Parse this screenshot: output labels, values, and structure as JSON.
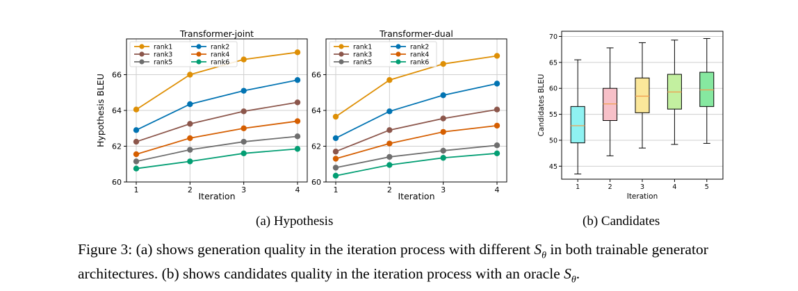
{
  "chart_data": [
    {
      "type": "line",
      "title": "Transformer-joint",
      "xlabel": "Iteration",
      "ylabel": "Hypothesis BLEU",
      "x": [
        1,
        2,
        3,
        4
      ],
      "ylim": [
        60,
        68
      ],
      "yticks": [
        60,
        62,
        64,
        66
      ],
      "grid": true,
      "legend_position": "top-left",
      "series": [
        {
          "name": "rank1",
          "color": "#de8f05",
          "values": [
            64.05,
            66.0,
            66.85,
            67.25
          ]
        },
        {
          "name": "rank2",
          "color": "#0173b2",
          "values": [
            62.9,
            64.35,
            65.1,
            65.7
          ]
        },
        {
          "name": "rank3",
          "color": "#8c564b",
          "values": [
            62.25,
            63.25,
            63.95,
            64.45
          ]
        },
        {
          "name": "rank4",
          "color": "#d55e00",
          "values": [
            61.55,
            62.45,
            63.0,
            63.4
          ]
        },
        {
          "name": "rank5",
          "color": "#6e6e6e",
          "values": [
            61.15,
            61.8,
            62.25,
            62.55
          ]
        },
        {
          "name": "rank6",
          "color": "#029e73",
          "values": [
            60.75,
            61.15,
            61.6,
            61.85
          ]
        }
      ]
    },
    {
      "type": "line",
      "title": "Transformer-dual",
      "xlabel": "Iteration",
      "ylabel": "",
      "x": [
        1,
        2,
        3,
        4
      ],
      "ylim": [
        60,
        68
      ],
      "yticks": [
        60,
        62,
        64,
        66
      ],
      "grid": true,
      "legend_position": "top-left",
      "series": [
        {
          "name": "rank1",
          "color": "#de8f05",
          "values": [
            63.65,
            65.7,
            66.6,
            67.05
          ]
        },
        {
          "name": "rank2",
          "color": "#0173b2",
          "values": [
            62.45,
            63.95,
            64.85,
            65.5
          ]
        },
        {
          "name": "rank3",
          "color": "#8c564b",
          "values": [
            61.7,
            62.9,
            63.55,
            64.05
          ]
        },
        {
          "name": "rank4",
          "color": "#d55e00",
          "values": [
            61.3,
            62.15,
            62.8,
            63.15
          ]
        },
        {
          "name": "rank5",
          "color": "#6e6e6e",
          "values": [
            60.8,
            61.4,
            61.75,
            62.05
          ]
        },
        {
          "name": "rank6",
          "color": "#029e73",
          "values": [
            60.35,
            60.95,
            61.35,
            61.6
          ]
        }
      ]
    },
    {
      "type": "box",
      "title": "",
      "xlabel": "Iteration",
      "ylabel": "Candidates BLEU",
      "categories": [
        "1",
        "2",
        "3",
        "4",
        "5"
      ],
      "ylim": [
        42.5,
        71
      ],
      "yticks": [
        45,
        50,
        55,
        60,
        65,
        70
      ],
      "grid": true,
      "median_color": "#f0a050",
      "boxes": [
        {
          "whisker_low": 43.5,
          "q1": 49.5,
          "median": 52.8,
          "q3": 56.5,
          "whisker_high": 65.5,
          "color": "#8ff2f2"
        },
        {
          "whisker_low": 47.0,
          "q1": 53.8,
          "median": 57.0,
          "q3": 60.0,
          "whisker_high": 67.8,
          "color": "#f7c0c8"
        },
        {
          "whisker_low": 48.5,
          "q1": 55.3,
          "median": 58.5,
          "q3": 62.0,
          "whisker_high": 68.8,
          "color": "#fbe79a"
        },
        {
          "whisker_low": 49.2,
          "q1": 56.0,
          "median": 59.3,
          "q3": 62.7,
          "whisker_high": 69.3,
          "color": "#c3f0a0"
        },
        {
          "whisker_low": 49.4,
          "q1": 56.5,
          "median": 59.7,
          "q3": 63.1,
          "whisker_high": 69.6,
          "color": "#86e8a0"
        }
      ]
    }
  ],
  "captions": {
    "sub_a": "(a) Hypothesis",
    "sub_b": "(b) Candidates",
    "figure_prefix": "Figure 3: (a) shows generation quality in the iteration process with different ",
    "figure_mid": " in both trainable generator architectures. (b) shows candidates quality in the iteration process with an oracle ",
    "figure_end": ".",
    "symbol": "S",
    "symbol_sub": "θ"
  }
}
